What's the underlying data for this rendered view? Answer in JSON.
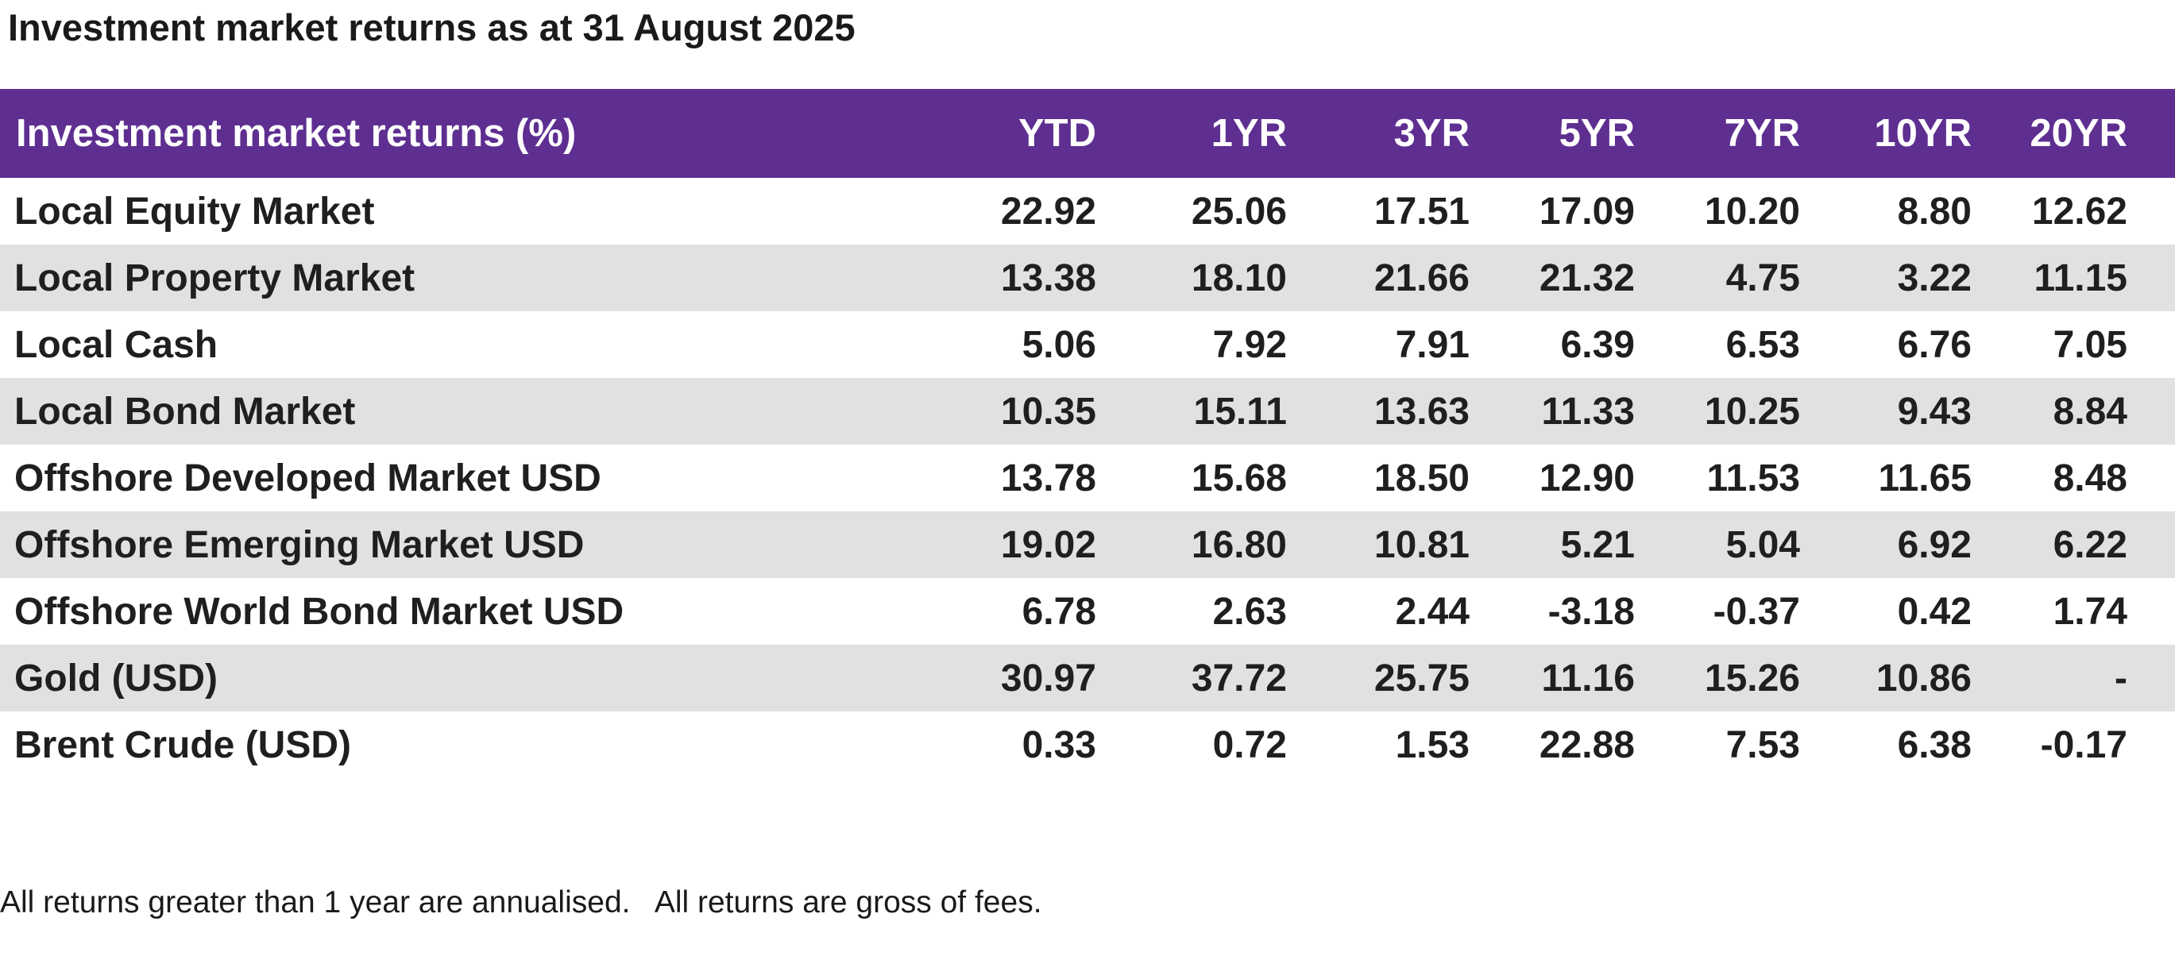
{
  "document": {
    "title": "Investment market returns as at 31 August 2025",
    "footnote": "All returns greater than 1 year are annualised.   All returns are gross of fees."
  },
  "table": {
    "header": {
      "name": "Investment market returns (%)",
      "ytd": "YTD",
      "yr1": "1YR",
      "yr3": "3YR",
      "yr5": "5YR",
      "yr7": "7YR",
      "yr10": "10YR",
      "yr20": "20YR"
    },
    "rows": [
      {
        "name": "Local Equity Market",
        "ytd": "22.92",
        "yr1": "25.06",
        "yr3": "17.51",
        "yr5": "17.09",
        "yr7": "10.20",
        "yr10": "8.80",
        "yr20": "12.62"
      },
      {
        "name": "Local Property Market",
        "ytd": "13.38",
        "yr1": "18.10",
        "yr3": "21.66",
        "yr5": "21.32",
        "yr7": "4.75",
        "yr10": "3.22",
        "yr20": "11.15"
      },
      {
        "name": "Local Cash",
        "ytd": "5.06",
        "yr1": "7.92",
        "yr3": "7.91",
        "yr5": "6.39",
        "yr7": "6.53",
        "yr10": "6.76",
        "yr20": "7.05"
      },
      {
        "name": "Local Bond Market",
        "ytd": "10.35",
        "yr1": "15.11",
        "yr3": "13.63",
        "yr5": "11.33",
        "yr7": "10.25",
        "yr10": "9.43",
        "yr20": "8.84"
      },
      {
        "name": "Offshore Developed Market USD",
        "ytd": "13.78",
        "yr1": "15.68",
        "yr3": "18.50",
        "yr5": "12.90",
        "yr7": "11.53",
        "yr10": "11.65",
        "yr20": "8.48"
      },
      {
        "name": "Offshore Emerging Market USD",
        "ytd": "19.02",
        "yr1": "16.80",
        "yr3": "10.81",
        "yr5": "5.21",
        "yr7": "5.04",
        "yr10": "6.92",
        "yr20": "6.22"
      },
      {
        "name": "Offshore World Bond Market USD",
        "ytd": "6.78",
        "yr1": "2.63",
        "yr3": "2.44",
        "yr5": "-3.18",
        "yr7": "-0.37",
        "yr10": "0.42",
        "yr20": "1.74"
      },
      {
        "name": "Gold (USD)",
        "ytd": "30.97",
        "yr1": "37.72",
        "yr3": "25.75",
        "yr5": "11.16",
        "yr7": "15.26",
        "yr10": "10.86",
        "yr20": "-"
      },
      {
        "name": "Brent Crude (USD)",
        "ytd": "0.33",
        "yr1": "0.72",
        "yr3": "1.53",
        "yr5": "22.88",
        "yr7": "7.53",
        "yr10": "6.38",
        "yr20": "-0.17"
      }
    ]
  },
  "colors": {
    "header_background": "#5e2f91",
    "header_text": "#ffffff",
    "row_shading": "#e1e1e3"
  }
}
